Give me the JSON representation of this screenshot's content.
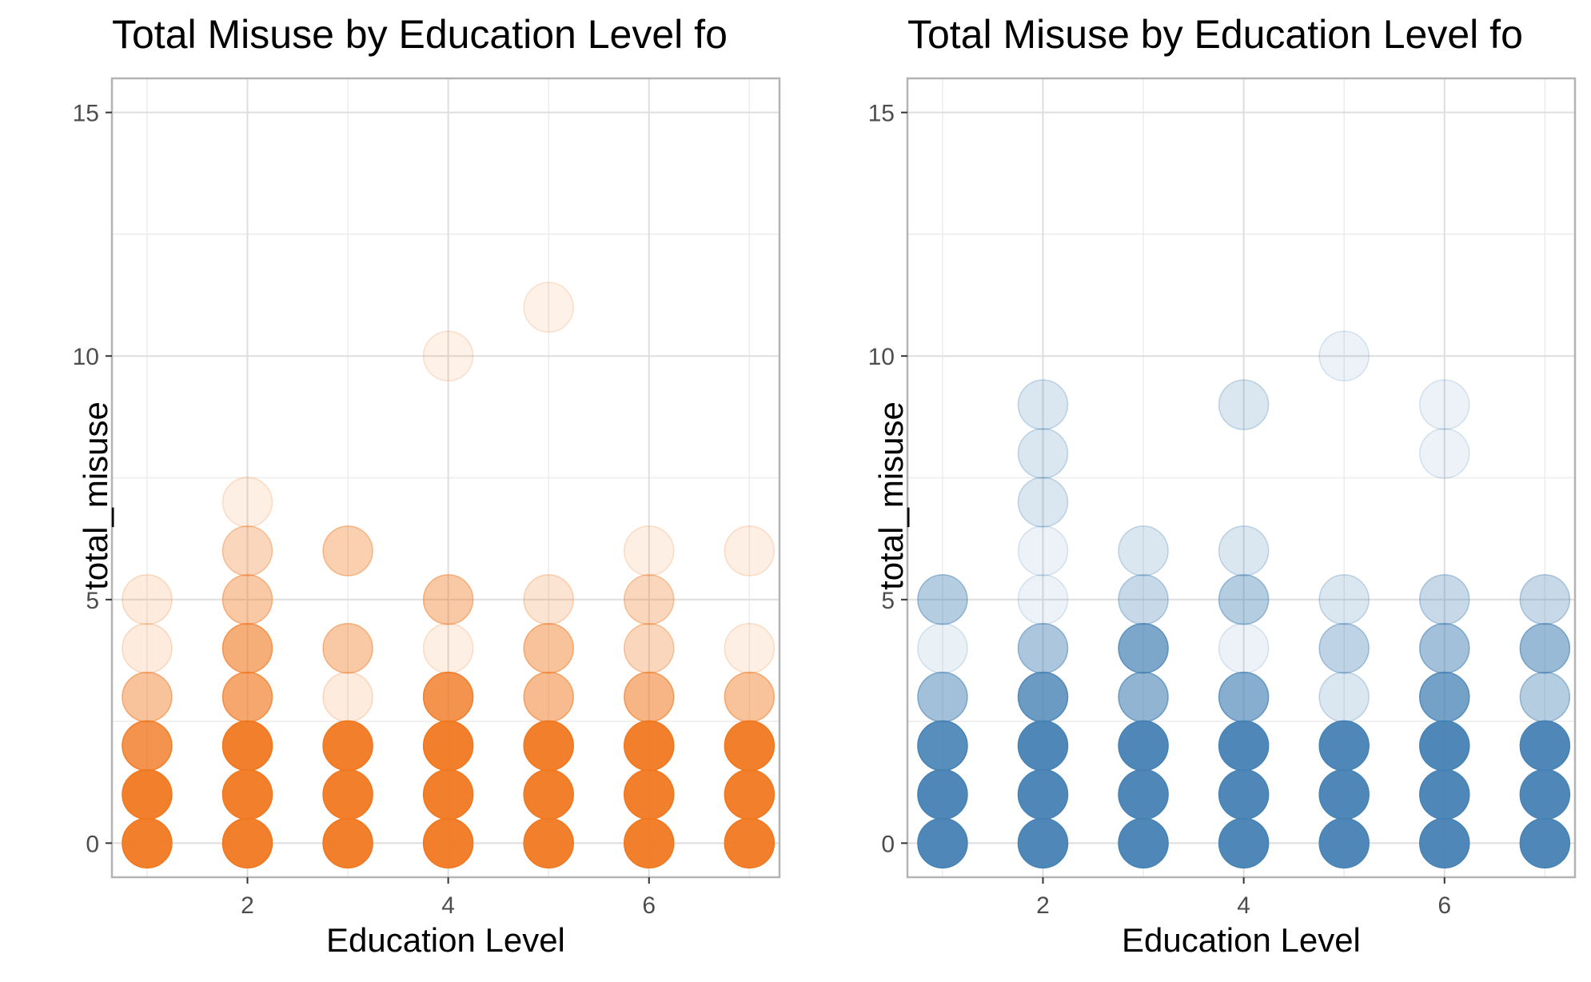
{
  "chart_data": [
    {
      "type": "scatter",
      "title": "Total Misuse by Education Level fo",
      "xlabel": "Education Level",
      "ylabel": "total_misuse",
      "xlim": [
        0.65,
        7.3
      ],
      "ylim": [
        -0.7,
        15.7
      ],
      "x_ticks": [
        2,
        4,
        6
      ],
      "y_ticks": [
        0,
        5,
        10,
        15
      ],
      "grid": true,
      "color": "#F07820",
      "points": [
        {
          "x": 1,
          "y": 0,
          "alpha": 0.95
        },
        {
          "x": 1,
          "y": 1,
          "alpha": 0.95
        },
        {
          "x": 1,
          "y": 2,
          "alpha": 0.8
        },
        {
          "x": 1,
          "y": 3,
          "alpha": 0.45
        },
        {
          "x": 1,
          "y": 4,
          "alpha": 0.15
        },
        {
          "x": 1,
          "y": 5,
          "alpha": 0.15
        },
        {
          "x": 2,
          "y": 0,
          "alpha": 0.95
        },
        {
          "x": 2,
          "y": 1,
          "alpha": 0.95
        },
        {
          "x": 2,
          "y": 2,
          "alpha": 0.95
        },
        {
          "x": 2,
          "y": 3,
          "alpha": 0.65
        },
        {
          "x": 2,
          "y": 4,
          "alpha": 0.6
        },
        {
          "x": 2,
          "y": 5,
          "alpha": 0.4
        },
        {
          "x": 2,
          "y": 6,
          "alpha": 0.3
        },
        {
          "x": 2,
          "y": 7,
          "alpha": 0.12
        },
        {
          "x": 3,
          "y": 0,
          "alpha": 0.95
        },
        {
          "x": 3,
          "y": 1,
          "alpha": 0.95
        },
        {
          "x": 3,
          "y": 2,
          "alpha": 0.95
        },
        {
          "x": 3,
          "y": 3,
          "alpha": 0.15
        },
        {
          "x": 3,
          "y": 4,
          "alpha": 0.4
        },
        {
          "x": 3,
          "y": 6,
          "alpha": 0.35
        },
        {
          "x": 4,
          "y": 0,
          "alpha": 0.95
        },
        {
          "x": 4,
          "y": 1,
          "alpha": 0.95
        },
        {
          "x": 4,
          "y": 2,
          "alpha": 0.95
        },
        {
          "x": 4,
          "y": 3,
          "alpha": 0.8
        },
        {
          "x": 4,
          "y": 4,
          "alpha": 0.12
        },
        {
          "x": 4,
          "y": 5,
          "alpha": 0.4
        },
        {
          "x": 4,
          "y": 10,
          "alpha": 0.1
        },
        {
          "x": 5,
          "y": 0,
          "alpha": 0.95
        },
        {
          "x": 5,
          "y": 1,
          "alpha": 0.95
        },
        {
          "x": 5,
          "y": 2,
          "alpha": 0.95
        },
        {
          "x": 5,
          "y": 3,
          "alpha": 0.5
        },
        {
          "x": 5,
          "y": 4,
          "alpha": 0.45
        },
        {
          "x": 5,
          "y": 5,
          "alpha": 0.2
        },
        {
          "x": 5,
          "y": 11,
          "alpha": 0.1
        },
        {
          "x": 6,
          "y": 0,
          "alpha": 0.95
        },
        {
          "x": 6,
          "y": 1,
          "alpha": 0.95
        },
        {
          "x": 6,
          "y": 2,
          "alpha": 0.95
        },
        {
          "x": 6,
          "y": 3,
          "alpha": 0.55
        },
        {
          "x": 6,
          "y": 4,
          "alpha": 0.3
        },
        {
          "x": 6,
          "y": 5,
          "alpha": 0.3
        },
        {
          "x": 6,
          "y": 6,
          "alpha": 0.12
        },
        {
          "x": 7,
          "y": 0,
          "alpha": 0.95
        },
        {
          "x": 7,
          "y": 1,
          "alpha": 0.95
        },
        {
          "x": 7,
          "y": 2,
          "alpha": 0.95
        },
        {
          "x": 7,
          "y": 3,
          "alpha": 0.45
        },
        {
          "x": 7,
          "y": 4,
          "alpha": 0.12
        },
        {
          "x": 7,
          "y": 6,
          "alpha": 0.12
        }
      ]
    },
    {
      "type": "scatter",
      "title": "Total Misuse by Education Level fo",
      "xlabel": "Education Level",
      "ylabel": "total_misuse",
      "xlim": [
        0.65,
        7.3
      ],
      "ylim": [
        -0.7,
        15.7
      ],
      "x_ticks": [
        2,
        4,
        6
      ],
      "y_ticks": [
        0,
        5,
        10,
        15
      ],
      "grid": true,
      "color": "#4682B4",
      "points": [
        {
          "x": 1,
          "y": 0,
          "alpha": 0.95
        },
        {
          "x": 1,
          "y": 1,
          "alpha": 0.95
        },
        {
          "x": 1,
          "y": 2,
          "alpha": 0.9
        },
        {
          "x": 1,
          "y": 3,
          "alpha": 0.5
        },
        {
          "x": 1,
          "y": 4,
          "alpha": 0.12
        },
        {
          "x": 1,
          "y": 5,
          "alpha": 0.4
        },
        {
          "x": 2,
          "y": 0,
          "alpha": 0.95
        },
        {
          "x": 2,
          "y": 1,
          "alpha": 0.95
        },
        {
          "x": 2,
          "y": 2,
          "alpha": 0.95
        },
        {
          "x": 2,
          "y": 3,
          "alpha": 0.8
        },
        {
          "x": 2,
          "y": 4,
          "alpha": 0.45
        },
        {
          "x": 2,
          "y": 5,
          "alpha": 0.1
        },
        {
          "x": 2,
          "y": 6,
          "alpha": 0.1
        },
        {
          "x": 2,
          "y": 7,
          "alpha": 0.2
        },
        {
          "x": 2,
          "y": 8,
          "alpha": 0.2
        },
        {
          "x": 2,
          "y": 9,
          "alpha": 0.2
        },
        {
          "x": 3,
          "y": 0,
          "alpha": 0.95
        },
        {
          "x": 3,
          "y": 1,
          "alpha": 0.95
        },
        {
          "x": 3,
          "y": 2,
          "alpha": 0.95
        },
        {
          "x": 3,
          "y": 3,
          "alpha": 0.6
        },
        {
          "x": 3,
          "y": 4,
          "alpha": 0.7
        },
        {
          "x": 3,
          "y": 5,
          "alpha": 0.3
        },
        {
          "x": 3,
          "y": 6,
          "alpha": 0.2
        },
        {
          "x": 4,
          "y": 0,
          "alpha": 0.95
        },
        {
          "x": 4,
          "y": 1,
          "alpha": 0.95
        },
        {
          "x": 4,
          "y": 2,
          "alpha": 0.95
        },
        {
          "x": 4,
          "y": 3,
          "alpha": 0.65
        },
        {
          "x": 4,
          "y": 4,
          "alpha": 0.1
        },
        {
          "x": 4,
          "y": 5,
          "alpha": 0.4
        },
        {
          "x": 4,
          "y": 6,
          "alpha": 0.2
        },
        {
          "x": 4,
          "y": 9,
          "alpha": 0.2
        },
        {
          "x": 5,
          "y": 0,
          "alpha": 0.95
        },
        {
          "x": 5,
          "y": 1,
          "alpha": 0.95
        },
        {
          "x": 5,
          "y": 2,
          "alpha": 0.95
        },
        {
          "x": 5,
          "y": 3,
          "alpha": 0.2
        },
        {
          "x": 5,
          "y": 4,
          "alpha": 0.35
        },
        {
          "x": 5,
          "y": 5,
          "alpha": 0.2
        },
        {
          "x": 5,
          "y": 10,
          "alpha": 0.1
        },
        {
          "x": 6,
          "y": 0,
          "alpha": 0.95
        },
        {
          "x": 6,
          "y": 1,
          "alpha": 0.95
        },
        {
          "x": 6,
          "y": 2,
          "alpha": 0.95
        },
        {
          "x": 6,
          "y": 3,
          "alpha": 0.75
        },
        {
          "x": 6,
          "y": 4,
          "alpha": 0.5
        },
        {
          "x": 6,
          "y": 5,
          "alpha": 0.3
        },
        {
          "x": 6,
          "y": 8,
          "alpha": 0.1
        },
        {
          "x": 6,
          "y": 9,
          "alpha": 0.1
        },
        {
          "x": 7,
          "y": 0,
          "alpha": 0.95
        },
        {
          "x": 7,
          "y": 1,
          "alpha": 0.95
        },
        {
          "x": 7,
          "y": 2,
          "alpha": 0.95
        },
        {
          "x": 7,
          "y": 3,
          "alpha": 0.4
        },
        {
          "x": 7,
          "y": 4,
          "alpha": 0.55
        },
        {
          "x": 7,
          "y": 5,
          "alpha": 0.3
        }
      ]
    }
  ]
}
